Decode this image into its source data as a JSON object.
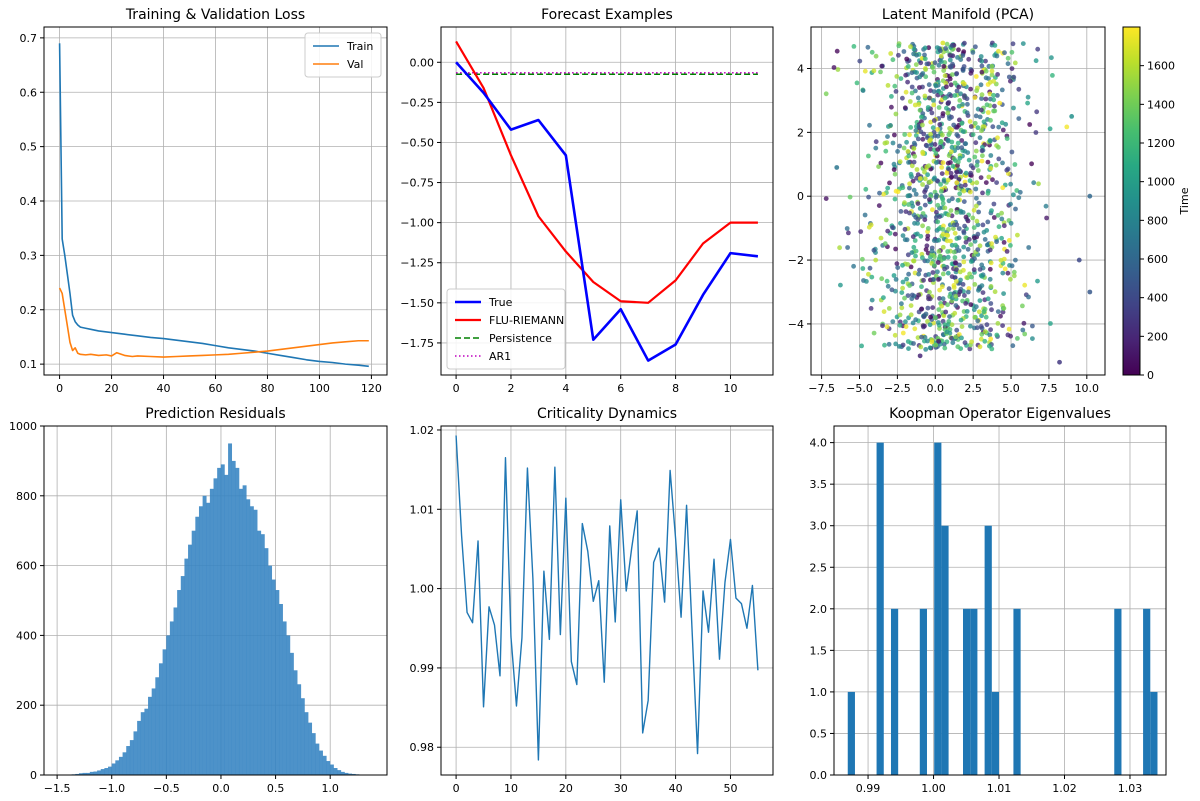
{
  "colors": {
    "train": "#1f77b4",
    "val": "#ff7f0e",
    "true": "#0000ff",
    "flu": "#ff0000",
    "persistence": "#008000",
    "ar1": "#bf00bf",
    "hist_fill": "#3a86c3",
    "crit_line": "#1f77b4",
    "koop_fill": "#1f77b4"
  },
  "chart_data": [
    {
      "type": "line",
      "title": "Training & Validation Loss",
      "xlim": [
        -6,
        126
      ],
      "ylim": [
        0.08,
        0.72
      ],
      "xticks": [
        0,
        20,
        40,
        60,
        80,
        100,
        120
      ],
      "yticks": [
        0.1,
        0.2,
        0.3,
        0.4,
        0.5,
        0.6,
        0.7
      ],
      "ytick_labels": [
        "0.1",
        "0.2",
        "0.3",
        "0.4",
        "0.5",
        "0.6",
        "0.7"
      ],
      "legend_position": "top-right",
      "series": [
        {
          "name": "Train",
          "color_key": "train",
          "x": [
            0,
            1,
            2,
            3,
            4,
            5,
            6,
            7,
            8,
            10,
            12,
            15,
            20,
            25,
            30,
            35,
            40,
            45,
            50,
            55,
            60,
            65,
            70,
            75,
            80,
            85,
            90,
            95,
            100,
            105,
            110,
            115,
            119
          ],
          "y": [
            0.69,
            0.33,
            0.3,
            0.265,
            0.23,
            0.19,
            0.178,
            0.172,
            0.168,
            0.166,
            0.164,
            0.161,
            0.158,
            0.155,
            0.152,
            0.149,
            0.147,
            0.144,
            0.141,
            0.138,
            0.134,
            0.13,
            0.127,
            0.124,
            0.12,
            0.116,
            0.112,
            0.108,
            0.105,
            0.103,
            0.1,
            0.098,
            0.096
          ]
        },
        {
          "name": "Val",
          "color_key": "val",
          "x": [
            0,
            1,
            2,
            3,
            4,
            5,
            6,
            7,
            8,
            10,
            12,
            15,
            18,
            20,
            22,
            25,
            28,
            30,
            35,
            40,
            45,
            50,
            55,
            60,
            65,
            70,
            75,
            80,
            85,
            90,
            95,
            100,
            105,
            110,
            115,
            119
          ],
          "y": [
            0.24,
            0.23,
            0.2,
            0.17,
            0.14,
            0.125,
            0.13,
            0.12,
            0.118,
            0.117,
            0.118,
            0.116,
            0.117,
            0.115,
            0.121,
            0.116,
            0.114,
            0.115,
            0.114,
            0.113,
            0.114,
            0.115,
            0.116,
            0.117,
            0.118,
            0.12,
            0.122,
            0.124,
            0.127,
            0.13,
            0.133,
            0.136,
            0.139,
            0.141,
            0.143,
            0.143
          ]
        }
      ]
    },
    {
      "type": "line",
      "title": "Forecast Examples",
      "xlim": [
        -0.55,
        11.55
      ],
      "ylim": [
        -1.95,
        0.22
      ],
      "xticks": [
        0,
        2,
        4,
        6,
        8,
        10
      ],
      "yticks": [
        0.0,
        -0.25,
        -0.5,
        -0.75,
        -1.0,
        -1.25,
        -1.5,
        -1.75
      ],
      "ytick_labels": [
        "0.00",
        "−0.25",
        "−0.50",
        "−0.75",
        "−1.00",
        "−1.25",
        "−1.50",
        "−1.75"
      ],
      "legend_position": "bottom-left",
      "series": [
        {
          "name": "True",
          "color_key": "true",
          "style": "solid",
          "width": 2.6,
          "x": [
            0,
            1,
            2,
            3,
            4,
            5,
            6,
            7,
            8,
            9,
            10,
            11
          ],
          "y": [
            0.0,
            -0.19,
            -0.42,
            -0.36,
            -0.58,
            -1.73,
            -1.54,
            -1.86,
            -1.76,
            -1.45,
            -1.19,
            -1.21
          ]
        },
        {
          "name": "FLU-RIEMANN",
          "color_key": "flu",
          "style": "solid",
          "width": 2.2,
          "x": [
            0,
            1,
            2,
            3,
            4,
            5,
            6,
            7,
            8,
            9,
            10,
            11
          ],
          "y": [
            0.13,
            -0.16,
            -0.58,
            -0.96,
            -1.18,
            -1.37,
            -1.49,
            -1.5,
            -1.36,
            -1.13,
            -1.0,
            -1.0
          ]
        },
        {
          "name": "Persistence",
          "color_key": "persistence",
          "style": "dashed",
          "width": 1.5,
          "x": [
            0,
            1,
            2,
            3,
            4,
            5,
            6,
            7,
            8,
            9,
            10,
            11
          ],
          "y": [
            -0.075,
            -0.075,
            -0.075,
            -0.075,
            -0.075,
            -0.075,
            -0.075,
            -0.075,
            -0.075,
            -0.075,
            -0.075,
            -0.075
          ]
        },
        {
          "name": "AR1",
          "color_key": "ar1",
          "style": "dotted",
          "width": 1.5,
          "x": [
            0,
            1,
            2,
            3,
            4,
            5,
            6,
            7,
            8,
            9,
            10,
            11
          ],
          "y": [
            -0.065,
            -0.065,
            -0.065,
            -0.065,
            -0.065,
            -0.065,
            -0.065,
            -0.065,
            -0.065,
            -0.065,
            -0.065,
            -0.065
          ]
        }
      ]
    },
    {
      "type": "scatter",
      "title": "Latent Manifold (PCA)",
      "xlim": [
        -8.2,
        11.2
      ],
      "ylim": [
        -5.6,
        5.3
      ],
      "xticks": [
        -7.5,
        -5.0,
        -2.5,
        0.0,
        2.5,
        5.0,
        7.5,
        10.0
      ],
      "xtick_labels": [
        "−7.5",
        "−5.0",
        "−2.5",
        "0.0",
        "2.5",
        "5.0",
        "7.5",
        "10.0"
      ],
      "yticks": [
        -4,
        -2,
        0,
        2,
        4
      ],
      "ytick_labels": [
        "−4",
        "−2",
        "0",
        "2",
        "4"
      ],
      "colorbar": {
        "label": "Time",
        "min": 0,
        "max": 1800,
        "ticks": [
          0,
          200,
          400,
          600,
          800,
          1000,
          1200,
          1400,
          1600
        ]
      },
      "n_points": 1800,
      "spread": {
        "x_center": 0.8,
        "x_std": 3.2,
        "y_range": [
          -4.8,
          4.8
        ]
      },
      "points_sample": [
        {
          "x": -6.5,
          "y": 0.9,
          "t": 700
        },
        {
          "x": 9.0,
          "y": 2.5,
          "t": 900
        },
        {
          "x": 10.2,
          "y": 0.0,
          "t": 600
        },
        {
          "x": 10.2,
          "y": -3.0,
          "t": 500
        },
        {
          "x": 0.5,
          "y": 4.8,
          "t": 1700
        },
        {
          "x": -1.0,
          "y": -5.0,
          "t": 200
        },
        {
          "x": 8.2,
          "y": -5.2,
          "t": 300
        },
        {
          "x": 9.5,
          "y": -2.0,
          "t": 400
        }
      ]
    },
    {
      "type": "bar",
      "subtype": "histogram",
      "title": "Prediction Residuals",
      "xlim": [
        -1.62,
        1.52
      ],
      "ylim": [
        0,
        1000
      ],
      "xticks": [
        -1.5,
        -1.0,
        -0.5,
        0.0,
        0.5,
        1.0
      ],
      "xtick_labels": [
        "−1.5",
        "−1.0",
        "−0.5",
        "0.0",
        "0.5",
        "1.0"
      ],
      "yticks": [
        0,
        200,
        400,
        600,
        800,
        1000
      ],
      "bin_width": 0.03,
      "bin_start": -1.5,
      "counts": [
        1,
        0,
        1,
        0,
        2,
        3,
        5,
        6,
        6,
        9,
        10,
        13,
        17,
        20,
        24,
        33,
        42,
        52,
        65,
        83,
        100,
        125,
        155,
        180,
        190,
        224,
        248,
        280,
        320,
        360,
        400,
        440,
        480,
        530,
        570,
        620,
        660,
        700,
        740,
        770,
        800,
        780,
        820,
        850,
        880,
        890,
        860,
        950,
        900,
        880,
        820,
        830,
        790,
        770,
        760,
        700,
        690,
        650,
        600,
        560,
        530,
        490,
        440,
        400,
        350,
        300,
        260,
        220,
        180,
        150,
        120,
        90,
        70,
        55,
        40,
        30,
        20,
        14,
        9,
        6,
        4,
        3,
        2,
        1,
        1,
        1,
        0,
        0,
        0,
        1
      ]
    },
    {
      "type": "line",
      "title": "Criticality Dynamics",
      "xlim": [
        -2.75,
        57.75
      ],
      "ylim": [
        0.9765,
        1.0205
      ],
      "xticks": [
        0,
        10,
        20,
        30,
        40,
        50
      ],
      "yticks": [
        0.98,
        0.99,
        1.0,
        1.01,
        1.02
      ],
      "ytick_labels": [
        "0.98",
        "0.99",
        "1.00",
        "1.01",
        "1.02"
      ],
      "series": [
        {
          "name": "",
          "color_key": "crit_line",
          "x": [
            0,
            1,
            2,
            3,
            4,
            5,
            6,
            7,
            8,
            9,
            10,
            11,
            12,
            13,
            14,
            15,
            16,
            17,
            18,
            19,
            20,
            21,
            22,
            23,
            24,
            25,
            26,
            27,
            28,
            29,
            30,
            31,
            32,
            33,
            34,
            35,
            36,
            37,
            38,
            39,
            40,
            41,
            42,
            43,
            44,
            45,
            46,
            47,
            48,
            49,
            50,
            51,
            52,
            53,
            54,
            55
          ],
          "y": [
            1.0193,
            1.0067,
            0.997,
            0.9957,
            1.006,
            0.9851,
            0.9977,
            0.9954,
            0.989,
            1.0165,
            0.9939,
            0.9852,
            0.9938,
            1.0152,
            1.0012,
            0.9784,
            1.0022,
            0.9936,
            1.0153,
            0.9942,
            1.0114,
            0.9908,
            0.9879,
            1.0082,
            1.0047,
            0.9984,
            1.001,
            0.9882,
            1.0079,
            0.9958,
            1.0112,
            0.9997,
            1.0051,
            1.0098,
            0.9818,
            0.9859,
            1.0033,
            1.0051,
            0.9983,
            1.0149,
            1.0063,
            0.9964,
            1.0105,
            0.9948,
            0.9792,
            0.9997,
            0.9945,
            1.0037,
            0.9911,
            1.0008,
            1.0062,
            0.9988,
            0.9981,
            0.995,
            1.0004,
            0.9897
          ]
        }
      ]
    },
    {
      "type": "bar",
      "subtype": "histogram",
      "title": "Koopman Operator Eigenvalues",
      "xlim": [
        0.9848,
        1.0355
      ],
      "ylim": [
        0,
        4.2
      ],
      "xticks": [
        0.99,
        1.0,
        1.01,
        1.02,
        1.03
      ],
      "xtick_labels": [
        "0.99",
        "1.00",
        "1.01",
        "1.02",
        "1.03"
      ],
      "yticks": [
        0.0,
        0.5,
        1.0,
        1.5,
        2.0,
        2.5,
        3.0,
        3.5,
        4.0
      ],
      "ytick_labels": [
        "0.0",
        "0.5",
        "1.0",
        "1.5",
        "2.0",
        "2.5",
        "3.0",
        "3.5",
        "4.0"
      ],
      "bin_width": 0.0011,
      "bin_start": 0.9869,
      "counts": [
        1,
        0,
        0,
        0,
        4,
        0,
        2,
        0,
        0,
        0,
        2,
        0,
        4,
        3,
        0,
        0,
        2,
        2,
        0,
        3,
        1,
        0,
        0,
        2,
        0,
        0,
        0,
        0,
        0,
        0,
        0,
        0,
        0,
        0,
        0,
        0,
        0,
        2,
        0,
        0,
        0,
        2,
        1
      ]
    }
  ]
}
